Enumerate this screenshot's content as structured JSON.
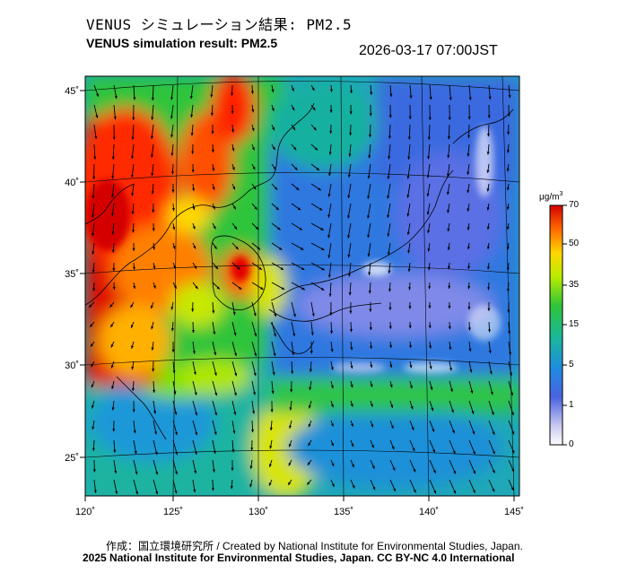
{
  "header": {
    "title_jp": "VENUS シミュレーション結果: PM2.5",
    "title_en": "VENUS simulation result: PM2.5",
    "timestamp": "2026-03-17 07:00JST"
  },
  "map": {
    "lat_labels": [
      "45˚",
      "40˚",
      "35˚",
      "30˚",
      "25˚"
    ],
    "lon_labels": [
      "120˚",
      "125˚",
      "130˚",
      "135˚",
      "140˚",
      "145˚"
    ]
  },
  "colorbar": {
    "unit_base": "μg/m",
    "unit_exp": "3",
    "ticks": [
      "70",
      "50",
      "35",
      "15",
      "5",
      "1",
      "0"
    ],
    "colors": {
      "c70": "#d50000",
      "c60": "#ff3300",
      "c50": "#ff8c00",
      "c40": "#ffd800",
      "c35": "#d6f000",
      "c25": "#7fe000",
      "c15": "#21c34b",
      "c10": "#1ab3a0",
      "c5": "#1f8ce0",
      "c2": "#3a64e0",
      "c1": "#8088e8",
      "c0": "#ffffff"
    }
  },
  "footer": {
    "credit_jp": "作成：国立環境研究所 / Created by National Institute for Environmental Studies, Japan.",
    "credit_en": "2025 National Institute for Environmental Studies, Japan. CC BY-NC 4.0 International"
  }
}
